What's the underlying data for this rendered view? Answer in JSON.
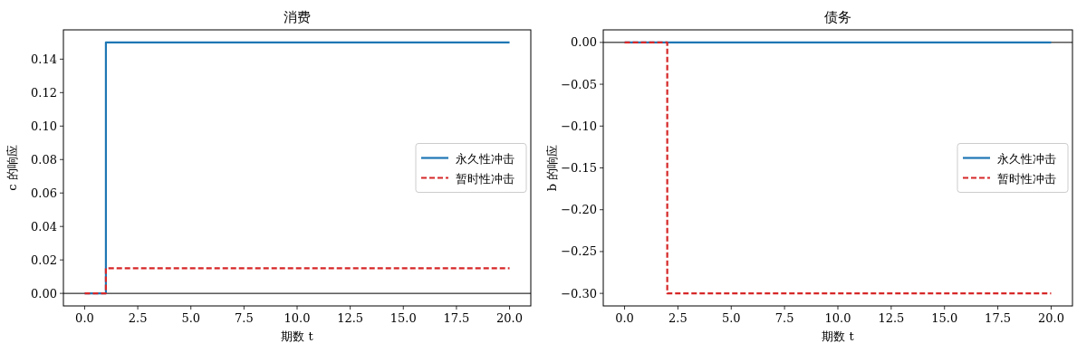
{
  "chart_data": [
    {
      "type": "step",
      "title": "消费",
      "xlabel": "期数 t",
      "ylabel": "c 的响应",
      "x": [
        0,
        1,
        2,
        3,
        4,
        5,
        6,
        7,
        8,
        9,
        10,
        11,
        12,
        13,
        14,
        15,
        16,
        17,
        18,
        19,
        20
      ],
      "series": [
        {
          "name": "永久性冲击",
          "color": "#1f77b4",
          "line_style": "solid",
          "values": [
            0,
            0.15,
            0.15,
            0.15,
            0.15,
            0.15,
            0.15,
            0.15,
            0.15,
            0.15,
            0.15,
            0.15,
            0.15,
            0.15,
            0.15,
            0.15,
            0.15,
            0.15,
            0.15,
            0.15,
            0.15
          ]
        },
        {
          "name": "暂时性冲击",
          "color": "#d62728",
          "line_style": "dashed",
          "values": [
            0,
            0.015,
            0.015,
            0.015,
            0.015,
            0.015,
            0.015,
            0.015,
            0.015,
            0.015,
            0.015,
            0.015,
            0.015,
            0.015,
            0.015,
            0.015,
            0.015,
            0.015,
            0.015,
            0.015,
            0.015
          ]
        }
      ],
      "xlim": [
        -1,
        21
      ],
      "xticks": [
        {
          "value": 0,
          "label": "0.0"
        },
        {
          "value": 2.5,
          "label": "2.5"
        },
        {
          "value": 5,
          "label": "5.0"
        },
        {
          "value": 7.5,
          "label": "7.5"
        },
        {
          "value": 10,
          "label": "10.0"
        },
        {
          "value": 12.5,
          "label": "12.5"
        },
        {
          "value": 15,
          "label": "15.0"
        },
        {
          "value": 17.5,
          "label": "17.5"
        },
        {
          "value": 20,
          "label": "20.0"
        }
      ],
      "ylim": [
        -0.0075,
        0.1575
      ],
      "yticks": [
        {
          "value": 0,
          "label": "0.00"
        },
        {
          "value": 0.02,
          "label": "0.02"
        },
        {
          "value": 0.04,
          "label": "0.04"
        },
        {
          "value": 0.06,
          "label": "0.06"
        },
        {
          "value": 0.08,
          "label": "0.08"
        },
        {
          "value": 0.1,
          "label": "0.10"
        },
        {
          "value": 0.12,
          "label": "0.12"
        },
        {
          "value": 0.14,
          "label": "0.14"
        }
      ],
      "ref_lines": [
        {
          "axis": "y",
          "value": 0,
          "color": "#000000"
        }
      ],
      "legend": "right",
      "grid": false
    },
    {
      "type": "step",
      "title": "债务",
      "xlabel": "期数 t",
      "ylabel": "b 的响应",
      "x": [
        0,
        1,
        2,
        3,
        4,
        5,
        6,
        7,
        8,
        9,
        10,
        11,
        12,
        13,
        14,
        15,
        16,
        17,
        18,
        19,
        20
      ],
      "series": [
        {
          "name": "永久性冲击",
          "color": "#1f77b4",
          "line_style": "solid",
          "values": [
            0,
            0,
            0,
            0,
            0,
            0,
            0,
            0,
            0,
            0,
            0,
            0,
            0,
            0,
            0,
            0,
            0,
            0,
            0,
            0,
            0
          ]
        },
        {
          "name": "暂时性冲击",
          "color": "#d62728",
          "line_style": "dashed",
          "values": [
            0,
            0,
            -0.3,
            -0.3,
            -0.3,
            -0.3,
            -0.3,
            -0.3,
            -0.3,
            -0.3,
            -0.3,
            -0.3,
            -0.3,
            -0.3,
            -0.3,
            -0.3,
            -0.3,
            -0.3,
            -0.3,
            -0.3,
            -0.3
          ]
        }
      ],
      "xlim": [
        -1,
        21
      ],
      "xticks": [
        {
          "value": 0,
          "label": "0.0"
        },
        {
          "value": 2.5,
          "label": "2.5"
        },
        {
          "value": 5,
          "label": "5.0"
        },
        {
          "value": 7.5,
          "label": "7.5"
        },
        {
          "value": 10,
          "label": "10.0"
        },
        {
          "value": 12.5,
          "label": "12.5"
        },
        {
          "value": 15,
          "label": "15.0"
        },
        {
          "value": 17.5,
          "label": "17.5"
        },
        {
          "value": 20,
          "label": "20.0"
        }
      ],
      "ylim": [
        -0.315,
        0.015
      ],
      "yticks": [
        {
          "value": 0,
          "label": "0.00"
        },
        {
          "value": -0.05,
          "label": "−0.05"
        },
        {
          "value": -0.1,
          "label": "−0.10"
        },
        {
          "value": -0.15,
          "label": "−0.15"
        },
        {
          "value": -0.2,
          "label": "−0.20"
        },
        {
          "value": -0.25,
          "label": "−0.25"
        },
        {
          "value": -0.3,
          "label": "−0.30"
        }
      ],
      "ref_lines": [
        {
          "axis": "y",
          "value": 0,
          "color": "#000000"
        }
      ],
      "legend": "right",
      "grid": false
    }
  ]
}
